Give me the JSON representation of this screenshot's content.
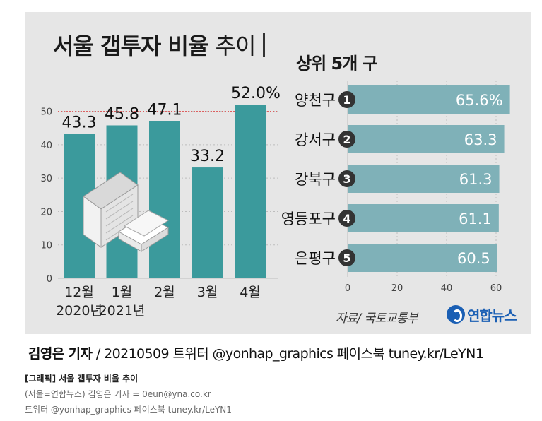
{
  "title": {
    "bold": "서울 갭투자 비율",
    "light": "추이"
  },
  "colors": {
    "bar": "#3b9a9c",
    "hbar": "#7fb1b8",
    "panel": "#e6e6e6",
    "refline": "#e05050",
    "rank_circle": "#333333"
  },
  "chart_data": [
    {
      "type": "bar",
      "categories": [
        {
          "month": "12월",
          "year": "2020년"
        },
        {
          "month": "1월",
          "year": "2021년"
        },
        {
          "month": "2월",
          "year": ""
        },
        {
          "month": "3월",
          "year": ""
        },
        {
          "month": "4월",
          "year": ""
        }
      ],
      "values": [
        43.3,
        45.8,
        47.1,
        33.2,
        52.0
      ],
      "value_labels": [
        "43.3",
        "45.8",
        "47.1",
        "33.2",
        "52.0%"
      ],
      "yticks": [
        "0",
        "10",
        "20",
        "30",
        "40",
        "50"
      ],
      "ylim": [
        0,
        55
      ],
      "reference_line": 50,
      "grid": true
    },
    {
      "type": "bar",
      "orientation": "horizontal",
      "title": "상위 5개 구",
      "categories": [
        "양천구",
        "강서구",
        "강북구",
        "영등포구",
        "은평구"
      ],
      "ranks": [
        "1",
        "2",
        "3",
        "4",
        "5"
      ],
      "values": [
        65.6,
        63.3,
        61.3,
        61.1,
        60.5
      ],
      "value_labels": [
        "65.6%",
        "63.3",
        "61.3",
        "61.1",
        "60.5"
      ],
      "xticks": [
        "0",
        "20",
        "40",
        "60"
      ],
      "xlim": [
        0,
        65
      ],
      "grid": true
    }
  ],
  "source": "자료/ 국토교통부",
  "logo": {
    "name": "연합뉴스",
    "icon": "yonhap-logo-icon"
  },
  "byline": {
    "name": "김영은 기자",
    "rest": " / 20210509   트위터 @yonhap_graphics  페이스북 tuney.kr/LeYN1"
  },
  "caption": {
    "title": "[그래픽] 서울 갭투자 비율 추이",
    "credit": "(서울=연합뉴스) 김영은 기자 = 0eun@yna.co.kr",
    "social": "트위터 @yonhap_graphics 페이스북 tuney.kr/LeYN1"
  }
}
